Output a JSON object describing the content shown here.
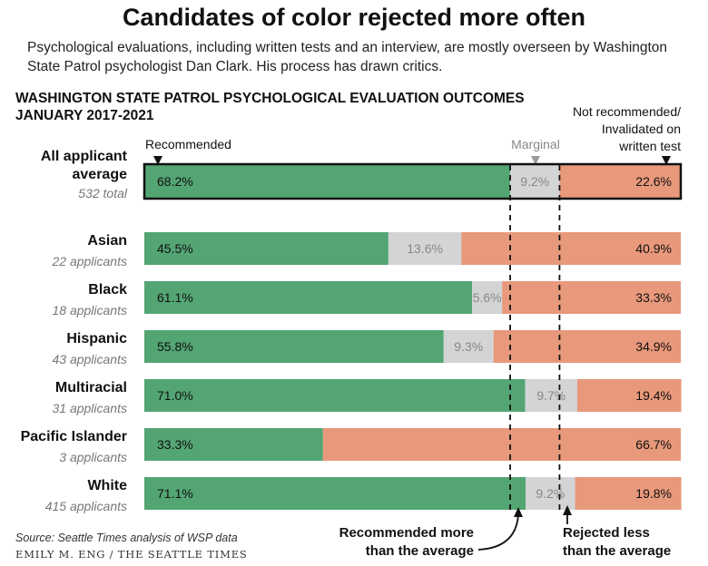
{
  "headline": "Candidates of color rejected more often",
  "subtitle": "Psychological evaluations, including written tests and an interview, are mostly overseen by Washington State Patrol psychologist Dan Clark. His process has drawn critics.",
  "chart_data": {
    "type": "bar",
    "orientation": "horizontal",
    "stacked": true,
    "normalized": true,
    "title_lines": [
      "WASHINGTON STATE PATROL PSYCHOLOGICAL EVALUATION OUTCOMES",
      "JANUARY 2017-2021"
    ],
    "legend": {
      "recommended": "Recommended",
      "marginal": "Marginal",
      "not_recommended_lines": [
        "Not recommended/",
        "Invalidated on",
        "written test"
      ]
    },
    "series": [
      {
        "name": "Recommended",
        "color": "#53a573"
      },
      {
        "name": "Marginal",
        "color": "#d2d4d6"
      },
      {
        "name": "Not recommended/Invalidated on written test",
        "color": "#e8987b"
      }
    ],
    "rows": [
      {
        "label": "All applicant average",
        "label_lines": [
          "All applicant",
          "average"
        ],
        "sublabel": "532 total",
        "values": [
          68.2,
          9.2,
          22.6
        ],
        "labels": [
          "68.2%",
          "9.2%",
          "22.6%"
        ],
        "highlight": true
      },
      {
        "label": "Asian",
        "label_lines": [
          "Asian"
        ],
        "sublabel": "22 applicants",
        "values": [
          45.5,
          13.6,
          40.9
        ],
        "labels": [
          "45.5%",
          "13.6%",
          "40.9%"
        ]
      },
      {
        "label": "Black",
        "label_lines": [
          "Black"
        ],
        "sublabel": "18 applicants",
        "values": [
          61.1,
          5.6,
          33.3
        ],
        "labels": [
          "61.1%",
          "5.6%",
          "33.3%"
        ]
      },
      {
        "label": "Hispanic",
        "label_lines": [
          "Hispanic"
        ],
        "sublabel": "43 applicants",
        "values": [
          55.8,
          9.3,
          34.9
        ],
        "labels": [
          "55.8%",
          "9.3%",
          "34.9%"
        ]
      },
      {
        "label": "Multiracial",
        "label_lines": [
          "Multiracial"
        ],
        "sublabel": "31 applicants",
        "values": [
          71.0,
          9.7,
          19.4
        ],
        "labels": [
          "71.0%",
          "9.7%",
          "19.4%"
        ]
      },
      {
        "label": "Pacific Islander",
        "label_lines": [
          "Pacific Islander"
        ],
        "sublabel": "3 applicants",
        "values": [
          33.3,
          0,
          66.7
        ],
        "labels": [
          "33.3%",
          "",
          "66.7%"
        ]
      },
      {
        "label": "White",
        "label_lines": [
          "White"
        ],
        "sublabel": "415 applicants",
        "values": [
          71.1,
          9.2,
          19.8
        ],
        "labels": [
          "71.1%",
          "9.2%",
          "19.8%"
        ]
      }
    ],
    "reference_lines": [
      68.2,
      77.4
    ],
    "annotations": [
      {
        "name": "recommended-more",
        "lines": [
          "Recommended more",
          "than the average"
        ]
      },
      {
        "name": "rejected-less",
        "lines": [
          "Rejected less",
          "than the average"
        ]
      }
    ]
  },
  "source": "Source: Seattle Times analysis of WSP data",
  "credit": "EMILY M. ENG / THE SEATTLE TIMES",
  "colors": {
    "recommended": "#53a573",
    "marginal": "#d2d4d6",
    "not_recommended": "#e8987b",
    "marginal_text": "#888888",
    "text": "#111111"
  }
}
